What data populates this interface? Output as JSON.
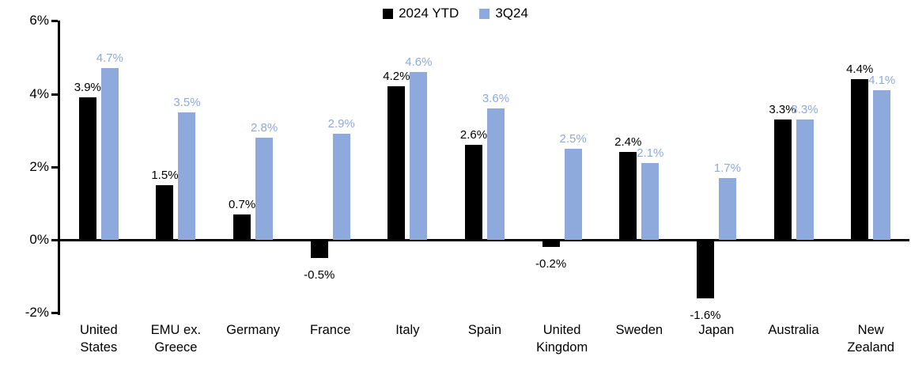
{
  "chart_data": {
    "type": "bar",
    "title": "",
    "xlabel": "",
    "ylabel": "",
    "categories": [
      "United States",
      "EMU ex. Greece",
      "Germany",
      "France",
      "Italy",
      "Spain",
      "United Kingdom",
      "Sweden",
      "Japan",
      "Australia",
      "New Zealand"
    ],
    "category_label_lines": [
      [
        "United",
        "States"
      ],
      [
        "EMU ex.",
        "Greece"
      ],
      [
        "Germany"
      ],
      [
        "France"
      ],
      [
        "Italy"
      ],
      [
        "Spain"
      ],
      [
        "United",
        "Kingdom"
      ],
      [
        "Sweden"
      ],
      [
        "Japan"
      ],
      [
        "Australia"
      ],
      [
        "New",
        "Zealand"
      ]
    ],
    "series": [
      {
        "name": "2024 YTD",
        "color": "#000000",
        "values": [
          3.9,
          1.5,
          0.7,
          -0.5,
          4.2,
          2.6,
          -0.2,
          2.4,
          -1.6,
          3.3,
          4.4
        ]
      },
      {
        "name": "3Q24",
        "color": "#8EA9DB",
        "values": [
          4.7,
          3.5,
          2.8,
          2.9,
          4.6,
          3.6,
          2.5,
          2.1,
          1.7,
          3.3,
          4.1
        ]
      }
    ],
    "data_labels": {
      "series_0": [
        "3.9%",
        "1.5%",
        "0.7%",
        "-0.5%",
        "4.2%",
        "2.6%",
        "-0.2%",
        "2.4%",
        "-1.6%",
        "3.3%",
        "4.4%"
      ],
      "series_1": [
        "4.7%",
        "3.5%",
        "2.8%",
        "2.9%",
        "4.6%",
        "3.6%",
        "2.5%",
        "2.1%",
        "1.7%",
        "3.3%",
        "4.1%"
      ]
    },
    "y_axis": {
      "min": -2,
      "max": 6,
      "tick_step": 2,
      "tick_labels": [
        "6%",
        "4%",
        "2%",
        "0%",
        "-2%"
      ],
      "tick_values": [
        6,
        4,
        2,
        0,
        -2
      ]
    },
    "legend": {
      "position": "top-center",
      "entries": [
        {
          "label": "2024 YTD",
          "color": "#000000"
        },
        {
          "label": "3Q24",
          "color": "#8EA9DB"
        }
      ]
    },
    "grid": false,
    "colors": {
      "series_2024_ytd": "#000000",
      "series_3q24": "#8EA9DB",
      "axis": "#000000",
      "background": "#FFFFFF"
    }
  }
}
